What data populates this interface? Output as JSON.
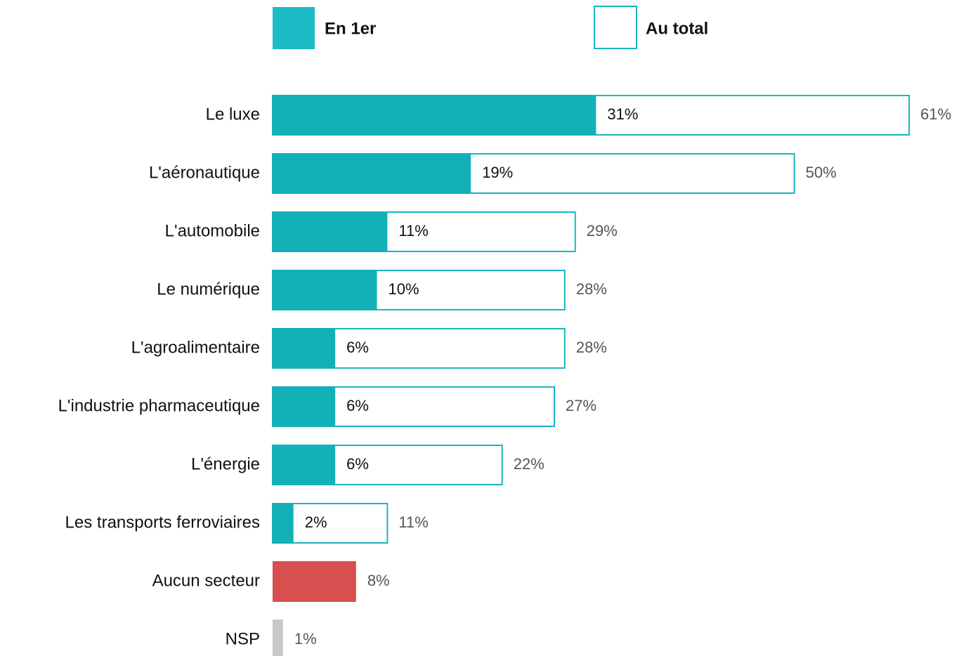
{
  "chart_data": {
    "type": "bar",
    "orientation": "horizontal",
    "categories": [
      "Le luxe",
      "L'aéronautique",
      "L'automobile",
      "Le numérique",
      "L'agroalimentaire",
      "L'industrie pharmaceutique",
      "L'énergie",
      "Les transports ferroviaires",
      "Aucun secteur",
      "NSP"
    ],
    "xlim": [
      0,
      61
    ],
    "legend": "top",
    "series": [
      {
        "name": "En 1er",
        "color": "#14b0b8",
        "style": "filled",
        "values": [
          31,
          19,
          11,
          10,
          6,
          6,
          6,
          2,
          null,
          null
        ],
        "value_labels": [
          "31%",
          "19%",
          "11%",
          "10%",
          "6%",
          "6%",
          "6%",
          "2%",
          null,
          null
        ]
      },
      {
        "name": "Au total",
        "color": "#1cb5bd",
        "style": "outline",
        "values": [
          61,
          50,
          29,
          28,
          28,
          27,
          22,
          11,
          null,
          null
        ],
        "value_labels": [
          "61%",
          "50%",
          "29%",
          "28%",
          "28%",
          "27%",
          "22%",
          "11%",
          null,
          null
        ]
      },
      {
        "style": "filled",
        "colors": [
          null,
          null,
          null,
          null,
          null,
          null,
          null,
          null,
          "#d84f50",
          "#c8c8c8"
        ],
        "values": [
          null,
          null,
          null,
          null,
          null,
          null,
          null,
          null,
          8,
          1
        ],
        "value_labels": [
          null,
          null,
          null,
          null,
          null,
          null,
          null,
          null,
          "8%",
          "1%"
        ]
      }
    ]
  }
}
